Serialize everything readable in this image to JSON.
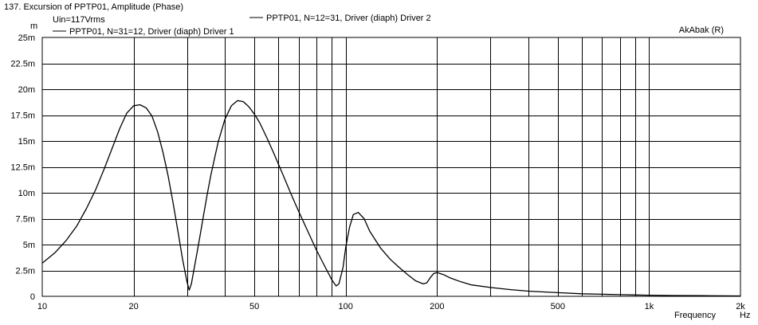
{
  "chart_data": {
    "type": "line",
    "title": "137. Excursion of PPTP01, Amplitude (Phase)",
    "subtitle": "Uin=117Vrms",
    "brand": "AkAbak (R)",
    "ylabel": "m",
    "xlabel": "Frequency",
    "xunit": "Hz",
    "xscale": "log",
    "xlim": [
      10,
      2000
    ],
    "ylim": [
      0,
      25
    ],
    "y_unit_suffix": "m",
    "grid": true,
    "xticks": [
      {
        "value": 10,
        "label": "10"
      },
      {
        "value": 20,
        "label": "20"
      },
      {
        "value": 50,
        "label": "50"
      },
      {
        "value": 100,
        "label": "100"
      },
      {
        "value": 200,
        "label": "200"
      },
      {
        "value": 500,
        "label": "500"
      },
      {
        "value": 1000,
        "label": "1k"
      },
      {
        "value": 2000,
        "label": "2k"
      }
    ],
    "yticks": [
      {
        "value": 0,
        "label": "0"
      },
      {
        "value": 2.5,
        "label": "2.5m"
      },
      {
        "value": 5,
        "label": "5m"
      },
      {
        "value": 7.5,
        "label": "7.5m"
      },
      {
        "value": 10,
        "label": "10m"
      },
      {
        "value": 12.5,
        "label": "12.5m"
      },
      {
        "value": 15,
        "label": "15m"
      },
      {
        "value": 17.5,
        "label": "17.5m"
      },
      {
        "value": 20,
        "label": "20m"
      },
      {
        "value": 22.5,
        "label": "22.5m"
      },
      {
        "value": 25,
        "label": "25m"
      }
    ],
    "series": [
      {
        "name": "PPTP01, N=31=12, Driver (diaph) Driver 1",
        "color": "#000000",
        "x": [
          10,
          11,
          12,
          13,
          14,
          15,
          16,
          17,
          18,
          19,
          20,
          21,
          22,
          23,
          24,
          25,
          26,
          27,
          28,
          29,
          30,
          30.5,
          31,
          32,
          33,
          34,
          35,
          36,
          38,
          40,
          42,
          44,
          46,
          48,
          50,
          52,
          55,
          58,
          62,
          66,
          70,
          75,
          80,
          85,
          90,
          93,
          95,
          98,
          100,
          103,
          106,
          110,
          115,
          120,
          130,
          140,
          150,
          160,
          170,
          180,
          185,
          190,
          195,
          200,
          210,
          220,
          240,
          260,
          300,
          350,
          400,
          500,
          600,
          700,
          800,
          900,
          1000,
          1200,
          1500,
          2000
        ],
        "y": [
          3.2,
          4.2,
          5.4,
          6.8,
          8.5,
          10.3,
          12.3,
          14.3,
          16.2,
          17.7,
          18.4,
          18.5,
          18.2,
          17.4,
          15.9,
          13.9,
          11.6,
          9.0,
          6.3,
          3.6,
          1.4,
          0.6,
          1.2,
          3.4,
          5.6,
          7.8,
          9.9,
          11.8,
          14.9,
          17.1,
          18.4,
          18.9,
          18.8,
          18.3,
          17.6,
          16.8,
          15.3,
          13.8,
          11.8,
          9.9,
          8.2,
          6.3,
          4.5,
          3.0,
          1.6,
          1.0,
          1.2,
          2.8,
          4.7,
          6.7,
          7.9,
          8.1,
          7.5,
          6.3,
          4.7,
          3.6,
          2.8,
          2.1,
          1.5,
          1.2,
          1.3,
          1.8,
          2.2,
          2.3,
          2.1,
          1.8,
          1.4,
          1.1,
          0.85,
          0.65,
          0.5,
          0.35,
          0.25,
          0.2,
          0.16,
          0.13,
          0.11,
          0.08,
          0.06,
          0.04
        ]
      },
      {
        "name": "PPTP01, N=12=31, Driver (diaph) Driver 2",
        "color": "#000000",
        "x": [],
        "y": []
      }
    ]
  }
}
